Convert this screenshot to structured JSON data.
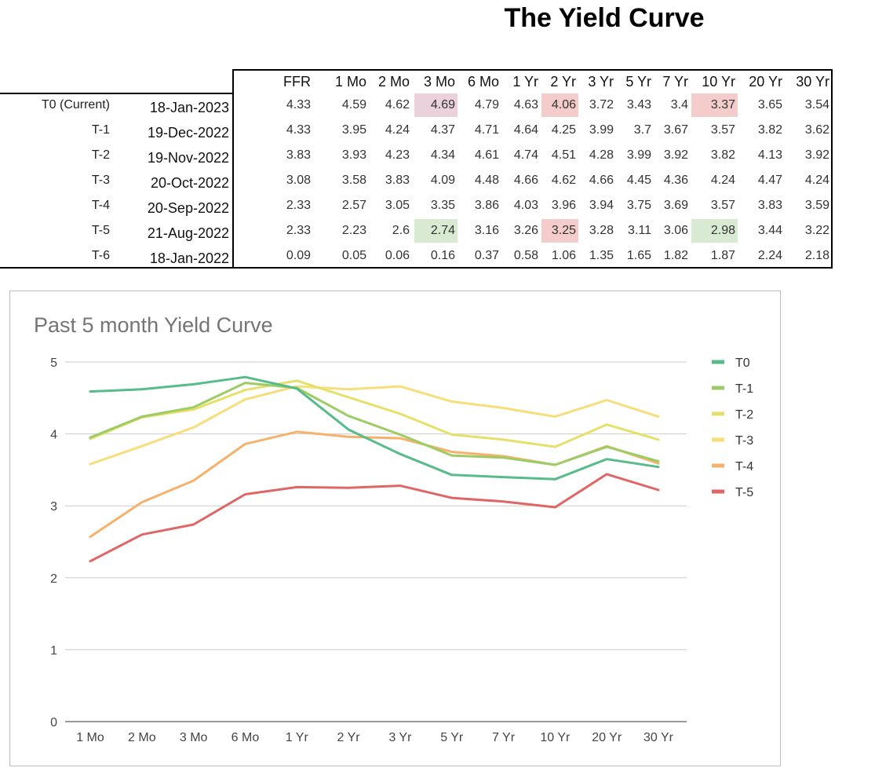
{
  "page_title": "The Yield Curve",
  "table": {
    "columns": [
      "FFR",
      "1 Mo",
      "2 Mo",
      "3 Mo",
      "6 Mo",
      "1 Yr",
      "2 Yr",
      "3 Yr",
      "5 Yr",
      "7 Yr",
      "10 Yr",
      "20 Yr",
      "30 Yr"
    ],
    "rows": [
      {
        "label": "T0 (Current)",
        "date": "18-Jan-2023",
        "values": [
          "4.33",
          "4.59",
          "4.62",
          "4.69",
          "4.79",
          "4.63",
          "4.06",
          "3.72",
          "3.43",
          "3.4",
          "3.37",
          "3.65",
          "3.54"
        ]
      },
      {
        "label": "T-1",
        "date": "19-Dec-2022",
        "values": [
          "4.33",
          "3.95",
          "4.24",
          "4.37",
          "4.71",
          "4.64",
          "4.25",
          "3.99",
          "3.7",
          "3.67",
          "3.57",
          "3.82",
          "3.62"
        ]
      },
      {
        "label": "T-2",
        "date": "19-Nov-2022",
        "values": [
          "3.83",
          "3.93",
          "4.23",
          "4.34",
          "4.61",
          "4.74",
          "4.51",
          "4.28",
          "3.99",
          "3.92",
          "3.82",
          "4.13",
          "3.92"
        ]
      },
      {
        "label": "T-3",
        "date": "20-Oct-2022",
        "values": [
          "3.08",
          "3.58",
          "3.83",
          "4.09",
          "4.48",
          "4.66",
          "4.62",
          "4.66",
          "4.45",
          "4.36",
          "4.24",
          "4.47",
          "4.24"
        ]
      },
      {
        "label": "T-4",
        "date": "20-Sep-2022",
        "values": [
          "2.33",
          "2.57",
          "3.05",
          "3.35",
          "3.86",
          "4.03",
          "3.96",
          "3.94",
          "3.75",
          "3.69",
          "3.57",
          "3.83",
          "3.59"
        ]
      },
      {
        "label": "T-5",
        "date": "21-Aug-2022",
        "values": [
          "2.33",
          "2.23",
          "2.6",
          "2.74",
          "3.16",
          "3.26",
          "3.25",
          "3.28",
          "3.11",
          "3.06",
          "2.98",
          "3.44",
          "3.22"
        ]
      },
      {
        "label": "T-6",
        "date": "18-Jan-2022",
        "values": [
          "0.09",
          "0.05",
          "0.06",
          "0.16",
          "0.37",
          "0.58",
          "1.06",
          "1.35",
          "1.65",
          "1.82",
          "1.87",
          "2.24",
          "2.18"
        ]
      }
    ],
    "highlights": [
      {
        "row": 0,
        "col": 3,
        "color": "#ead1dc"
      },
      {
        "row": 0,
        "col": 6,
        "color": "#f4cccc"
      },
      {
        "row": 0,
        "col": 10,
        "color": "#f4cccc"
      },
      {
        "row": 5,
        "col": 3,
        "color": "#d9ead3"
      },
      {
        "row": 5,
        "col": 6,
        "color": "#f4cccc"
      },
      {
        "row": 5,
        "col": 10,
        "color": "#d9ead3"
      }
    ]
  },
  "chart_data": {
    "type": "line",
    "title": "Past 5 month Yield Curve",
    "categories": [
      "1 Mo",
      "2 Mo",
      "3 Mo",
      "6 Mo",
      "1 Yr",
      "2 Yr",
      "3 Yr",
      "5 Yr",
      "7 Yr",
      "10 Yr",
      "20 Yr",
      "30 Yr"
    ],
    "ylim": [
      0,
      5
    ],
    "yticks": [
      0,
      1,
      2,
      3,
      4,
      5
    ],
    "grid": true,
    "legend": "right",
    "series": [
      {
        "name": "T0",
        "color": "#57bb8a",
        "values": [
          4.59,
          4.62,
          4.69,
          4.79,
          4.63,
          4.06,
          3.72,
          3.43,
          3.4,
          3.37,
          3.65,
          3.54
        ]
      },
      {
        "name": "T-1",
        "color": "#9ccc65",
        "values": [
          3.95,
          4.24,
          4.37,
          4.71,
          4.64,
          4.25,
          3.99,
          3.7,
          3.67,
          3.57,
          3.82,
          3.62
        ]
      },
      {
        "name": "T-2",
        "color": "#e6e06a",
        "values": [
          3.93,
          4.23,
          4.34,
          4.61,
          4.74,
          4.51,
          4.28,
          3.99,
          3.92,
          3.82,
          4.13,
          3.92
        ]
      },
      {
        "name": "T-3",
        "color": "#f7de7a",
        "values": [
          3.58,
          3.83,
          4.09,
          4.48,
          4.66,
          4.62,
          4.66,
          4.45,
          4.36,
          4.24,
          4.47,
          4.24
        ]
      },
      {
        "name": "T-4",
        "color": "#f6b26b",
        "values": [
          2.57,
          3.05,
          3.35,
          3.86,
          4.03,
          3.96,
          3.94,
          3.75,
          3.69,
          3.57,
          3.83,
          3.59
        ]
      },
      {
        "name": "T-5",
        "color": "#e06666",
        "values": [
          2.23,
          2.6,
          2.74,
          3.16,
          3.26,
          3.25,
          3.28,
          3.11,
          3.06,
          2.98,
          3.44,
          3.22
        ]
      }
    ]
  }
}
